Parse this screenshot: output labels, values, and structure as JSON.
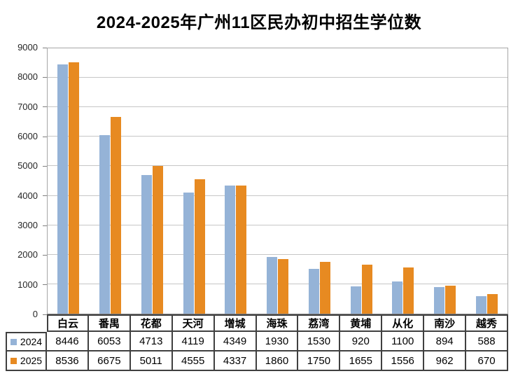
{
  "chart_data": {
    "type": "bar",
    "title": "2024-2025年广州11区民办初中招生学位数",
    "categories": [
      "白云",
      "番禺",
      "花都",
      "天河",
      "增城",
      "海珠",
      "荔湾",
      "黄埔",
      "从化",
      "南沙",
      "越秀"
    ],
    "series": [
      {
        "name": "2024",
        "color": "#95B3D7",
        "values": [
          8446,
          6053,
          4713,
          4119,
          4349,
          1930,
          1530,
          920,
          1100,
          894,
          588
        ]
      },
      {
        "name": "2025",
        "color": "#E78A21",
        "values": [
          8536,
          6675,
          5011,
          4555,
          4337,
          1860,
          1750,
          1655,
          1556,
          962,
          670
        ]
      }
    ],
    "xlabel": "",
    "ylabel": "",
    "ylim": [
      0,
      9000
    ],
    "ytick_interval": 1000,
    "ytick_labels": [
      "0",
      "1000",
      "2000",
      "3000",
      "4000",
      "5000",
      "6000",
      "7000",
      "8000",
      "9000"
    ],
    "grid": true,
    "legend_position": "data-table-left-column",
    "data_table_shown": true
  },
  "colors": {
    "series_2024": "#95B3D7",
    "series_2025": "#E78A21",
    "gridline": "#C6C6C6",
    "plot_border": "#A6A6A6",
    "axis_line": "#808080",
    "table_border": "#404040",
    "title_text": "#000000",
    "background": "#FFFFFF"
  }
}
